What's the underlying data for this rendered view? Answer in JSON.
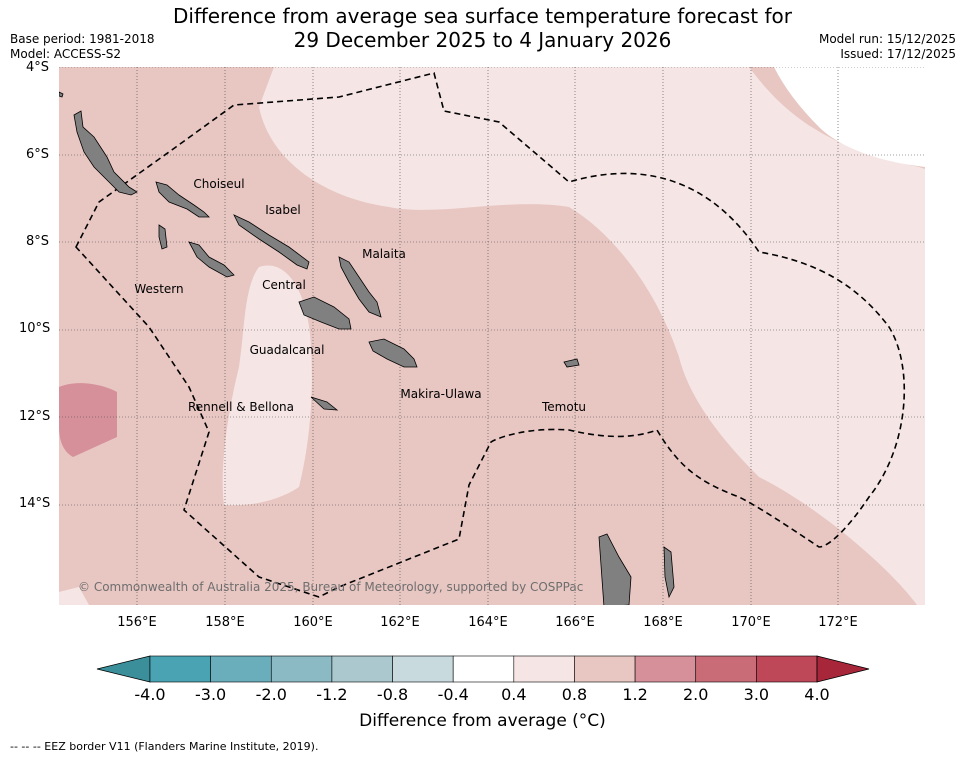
{
  "title_line1": "Difference from average sea surface temperature forecast for",
  "title_line2": "29 December 2025 to 4 January 2026",
  "base_period": "Base period: 1981-2018",
  "model": "Model: ACCESS-S2",
  "model_run": "Model run: 15/12/2025",
  "issued": "Issued: 17/12/2025",
  "copyright": "© Commonwealth of Australia 2025, Bureau of Meteorology, supported by COSPPac",
  "lat_labels": [
    "4°S",
    "6°S",
    "8°S",
    "10°S",
    "12°S",
    "14°S"
  ],
  "lon_labels": [
    "156°E",
    "158°E",
    "160°E",
    "162°E",
    "164°E",
    "166°E",
    "168°E",
    "170°E",
    "172°E"
  ],
  "provinces": {
    "choiseul": "Choiseul",
    "isabel": "Isabel",
    "malaita": "Malaita",
    "western": "Western",
    "central": "Central",
    "guadalcanal": "Guadalcanal",
    "rennell": "Rennell & Bellona",
    "makira": "Makira-Ulawa",
    "temotu": "Temotu"
  },
  "colorbar": {
    "title": "Difference from average (°C)",
    "labels": [
      "-4.0",
      "-3.0",
      "-2.0",
      "-1.2",
      "-0.8",
      "-0.4",
      "0.4",
      "0.8",
      "1.2",
      "2.0",
      "3.0",
      "4.0"
    ],
    "colors": [
      "#3a8f9a",
      "#4aa3b3",
      "#6aaebc",
      "#8cbac4",
      "#aac8ce",
      "#c9dadf",
      "#ffffff",
      "#f5e6e5",
      "#e8c7c3",
      "#d6909a",
      "#c96c78",
      "#bf4858",
      "#a8263a"
    ]
  },
  "eez_note": "--  --  -- EEZ border V11 (Flanders Marine Institute, 2019)."
}
